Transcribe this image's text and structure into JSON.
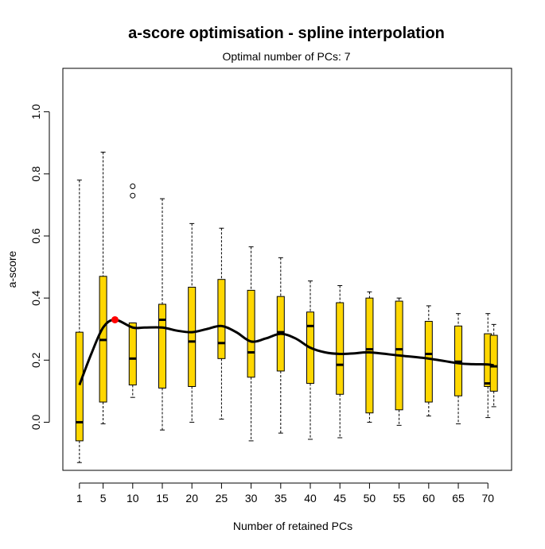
{
  "chart_data": {
    "type": "boxplot",
    "title": "a-score optimisation - spline interpolation",
    "subtitle": "Optimal number of PCs: 7",
    "xlabel": "Number of retained PCs",
    "ylabel": "a-score",
    "xlim": [
      -1.8,
      74
    ],
    "ylim": [
      -0.155,
      1.14
    ],
    "x_ticks": [
      1,
      5,
      10,
      15,
      20,
      25,
      30,
      35,
      40,
      45,
      50,
      55,
      60,
      65,
      70
    ],
    "y_ticks": [
      0.0,
      0.2,
      0.4,
      0.6,
      0.8,
      1.0
    ],
    "y_tick_labels": [
      "0.0",
      "0.2",
      "0.4",
      "0.6",
      "0.8",
      "1.0"
    ],
    "box_fill": "#FFD700",
    "curve_color": "#000000",
    "optimum_color": "#FF0000",
    "grid": false,
    "boxes": [
      {
        "x": 1,
        "min": -0.13,
        "q1": -0.06,
        "median": 0.0,
        "q3": 0.29,
        "max": 0.78,
        "outliers": []
      },
      {
        "x": 5,
        "min": -0.005,
        "q1": 0.065,
        "median": 0.265,
        "q3": 0.47,
        "max": 0.87,
        "outliers": []
      },
      {
        "x": 10,
        "min": 0.08,
        "q1": 0.12,
        "median": 0.205,
        "q3": 0.32,
        "max": 0.32,
        "outliers": [
          0.73,
          0.76
        ]
      },
      {
        "x": 15,
        "min": -0.025,
        "q1": 0.11,
        "median": 0.33,
        "q3": 0.38,
        "max": 0.72,
        "outliers": []
      },
      {
        "x": 20,
        "min": 0.0,
        "q1": 0.115,
        "median": 0.26,
        "q3": 0.435,
        "max": 0.64,
        "outliers": []
      },
      {
        "x": 25,
        "min": 0.01,
        "q1": 0.205,
        "median": 0.255,
        "q3": 0.46,
        "max": 0.625,
        "outliers": []
      },
      {
        "x": 30,
        "min": -0.06,
        "q1": 0.145,
        "median": 0.225,
        "q3": 0.425,
        "max": 0.565,
        "outliers": []
      },
      {
        "x": 35,
        "min": -0.035,
        "q1": 0.165,
        "median": 0.29,
        "q3": 0.405,
        "max": 0.53,
        "outliers": []
      },
      {
        "x": 40,
        "min": -0.055,
        "q1": 0.125,
        "median": 0.31,
        "q3": 0.355,
        "max": 0.455,
        "outliers": []
      },
      {
        "x": 45,
        "min": -0.05,
        "q1": 0.09,
        "median": 0.185,
        "q3": 0.385,
        "max": 0.44,
        "outliers": []
      },
      {
        "x": 50,
        "min": 0.0,
        "q1": 0.03,
        "median": 0.235,
        "q3": 0.4,
        "max": 0.42,
        "outliers": []
      },
      {
        "x": 55,
        "min": -0.01,
        "q1": 0.04,
        "median": 0.235,
        "q3": 0.39,
        "max": 0.4,
        "outliers": []
      },
      {
        "x": 60,
        "min": 0.02,
        "q1": 0.065,
        "median": 0.22,
        "q3": 0.325,
        "max": 0.375,
        "outliers": []
      },
      {
        "x": 65,
        "min": -0.005,
        "q1": 0.085,
        "median": 0.195,
        "q3": 0.31,
        "max": 0.35,
        "outliers": []
      },
      {
        "x": 70,
        "min": 0.015,
        "q1": 0.115,
        "median": 0.125,
        "q3": 0.285,
        "max": 0.35,
        "outliers": []
      },
      {
        "x": 71,
        "min": 0.05,
        "q1": 0.1,
        "median": 0.18,
        "q3": 0.28,
        "max": 0.315,
        "outliers": []
      }
    ],
    "spline": {
      "x": [
        1,
        3,
        5,
        7,
        10,
        12,
        15,
        17.5,
        20,
        22.5,
        25,
        27.5,
        30,
        32.5,
        35,
        37.5,
        40,
        42.5,
        45,
        47.5,
        50,
        55,
        60,
        65,
        67.5,
        70,
        71
      ],
      "y": [
        0.12,
        0.22,
        0.305,
        0.33,
        0.305,
        0.305,
        0.305,
        0.295,
        0.29,
        0.3,
        0.31,
        0.29,
        0.26,
        0.27,
        0.285,
        0.27,
        0.24,
        0.225,
        0.22,
        0.222,
        0.225,
        0.215,
        0.205,
        0.19,
        0.187,
        0.186,
        0.183
      ]
    },
    "optimum": {
      "x": 7,
      "y": 0.33
    }
  }
}
